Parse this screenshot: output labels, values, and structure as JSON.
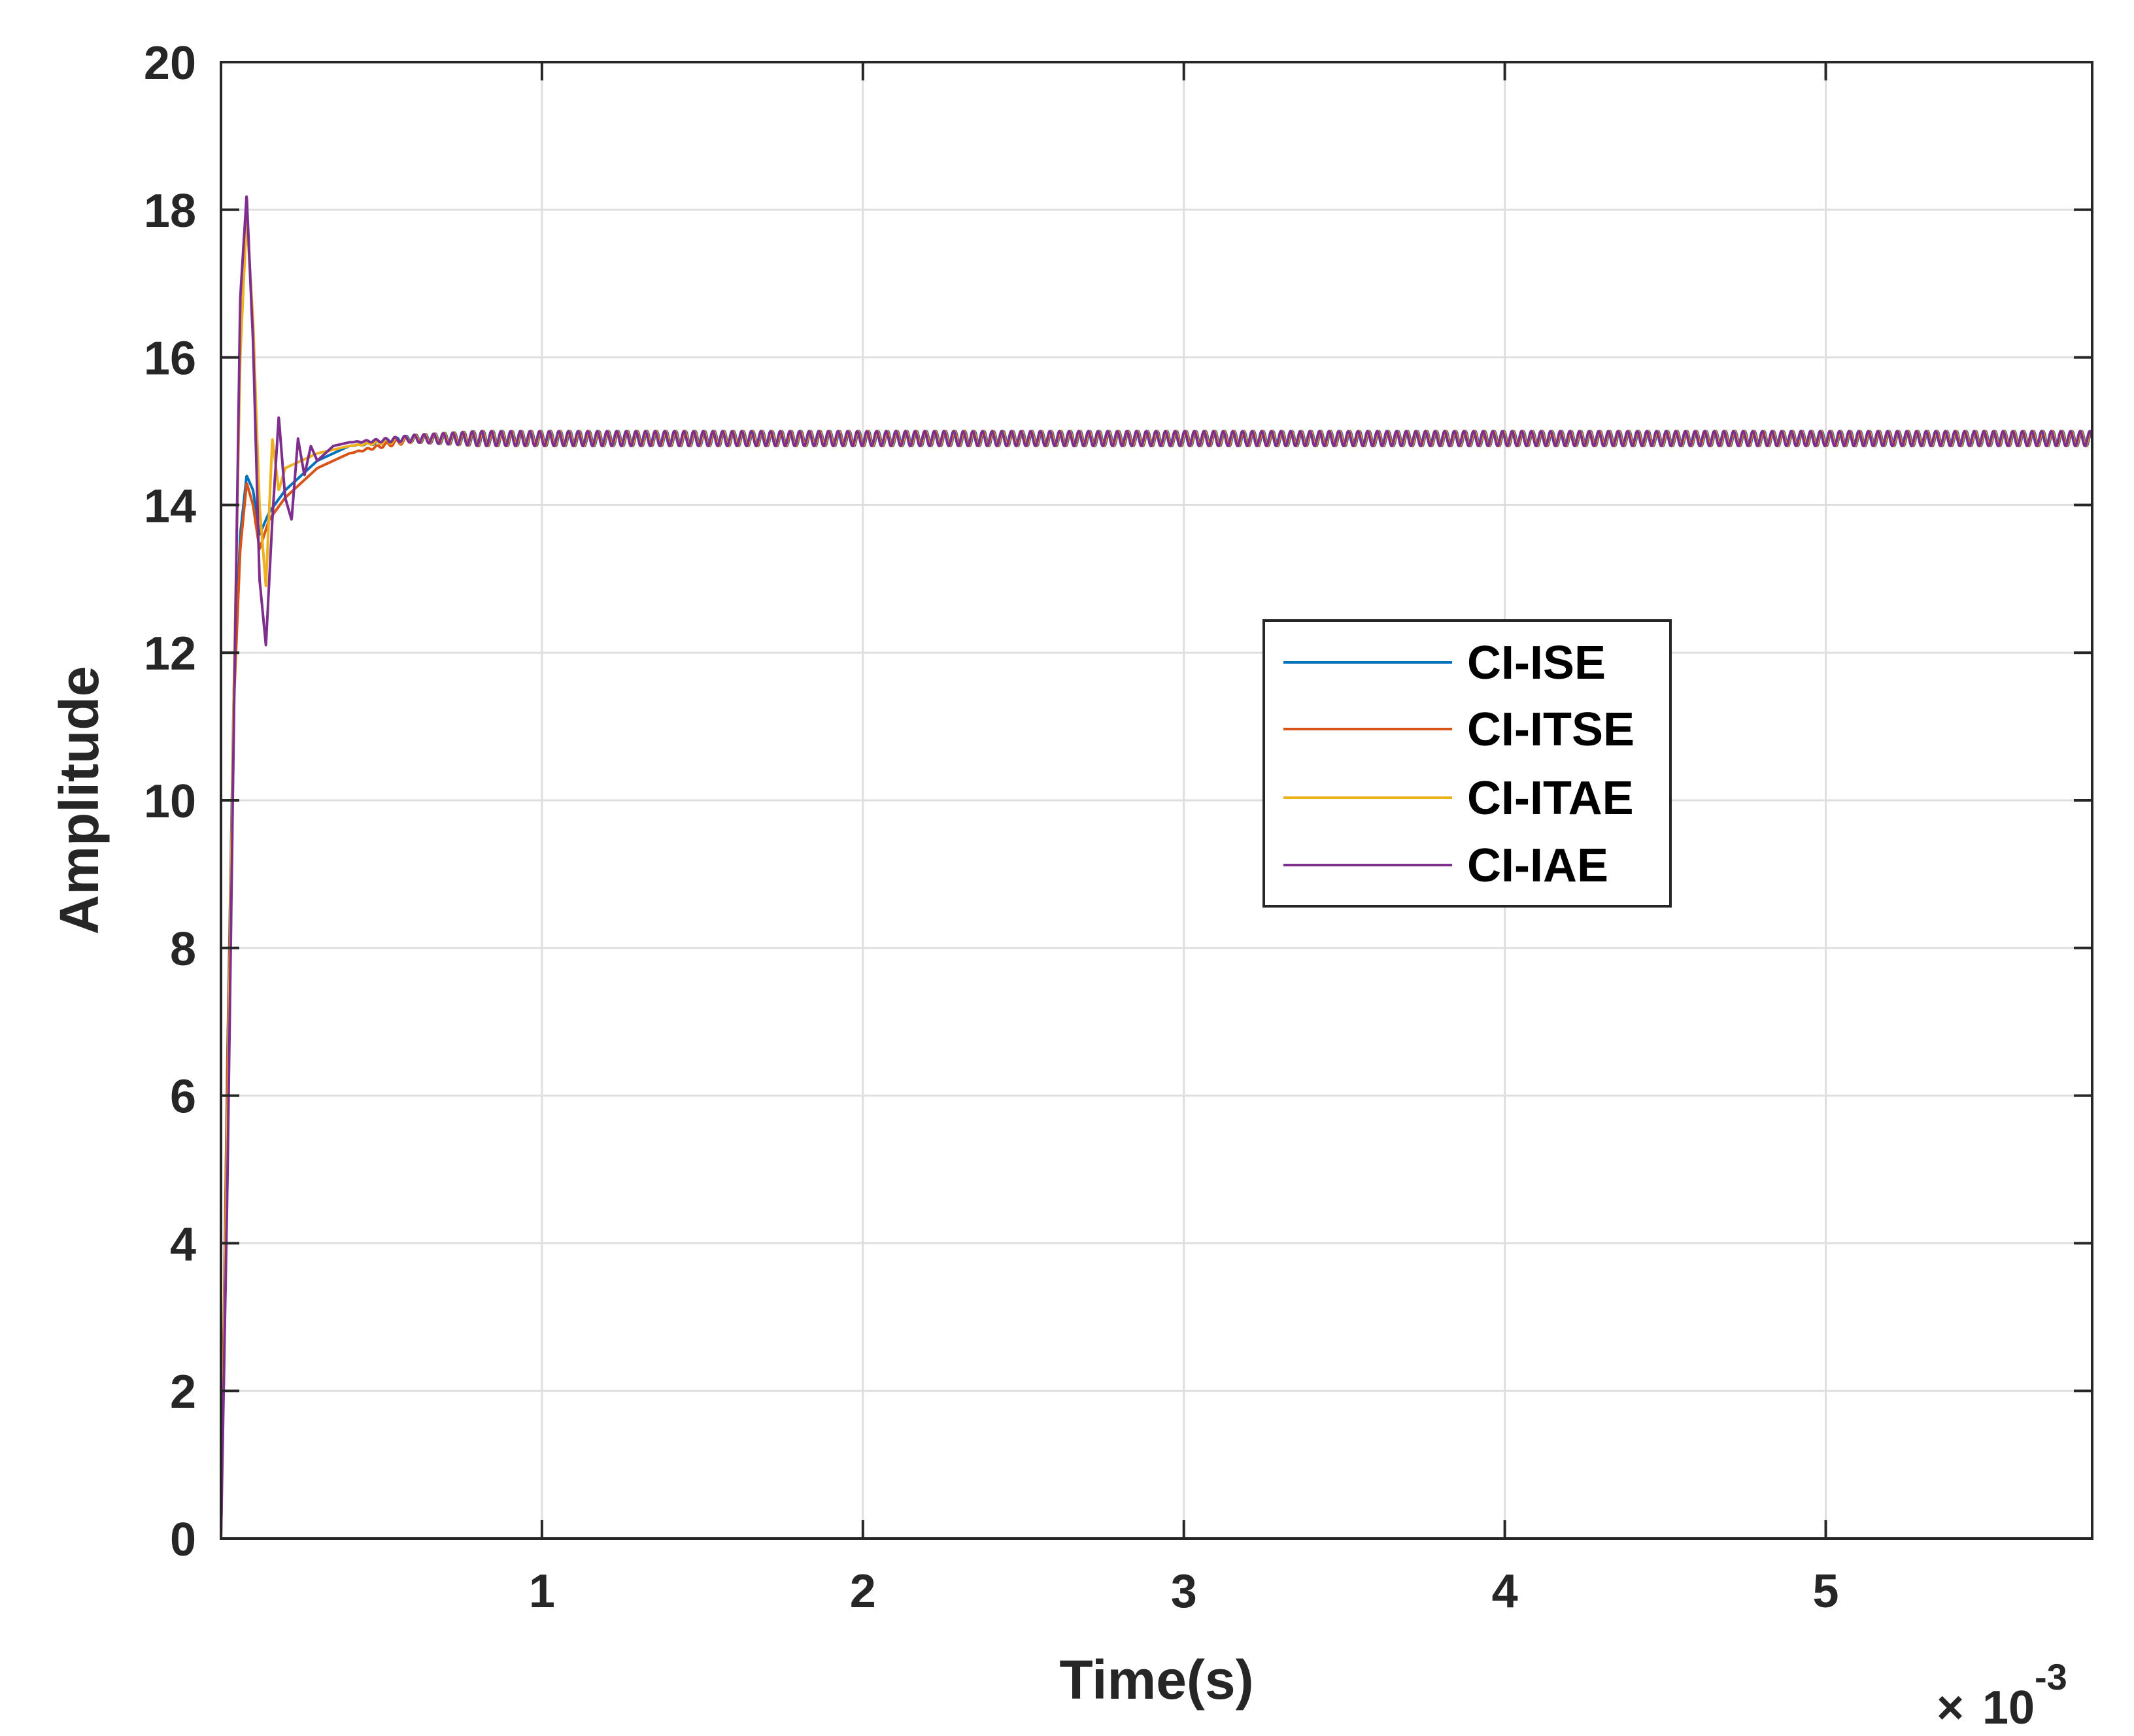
{
  "chart_data": {
    "type": "line",
    "xlabel": "Time(s)",
    "ylabel": "Amplitude",
    "x_exponent_label": {
      "times": "×",
      "base": "10",
      "power": "-3"
    },
    "xlim": [
      0,
      0.00583
    ],
    "ylim": [
      0,
      20
    ],
    "x_ticks": [
      0.001,
      0.002,
      0.003,
      0.004,
      0.005
    ],
    "x_tick_labels": [
      "1",
      "2",
      "3",
      "4",
      "5"
    ],
    "y_ticks": [
      0,
      2,
      4,
      6,
      8,
      10,
      12,
      14,
      16,
      18,
      20
    ],
    "y_tick_labels": [
      "0",
      "2",
      "4",
      "6",
      "8",
      "10",
      "12",
      "14",
      "16",
      "18",
      "20"
    ],
    "grid": true,
    "legend": {
      "position": "center-right",
      "entries": [
        "CI-ISE",
        "CI-ITSE",
        "CI-ITAE",
        "CI-IAE"
      ]
    },
    "ripple": {
      "start": 0.0008,
      "amplitude": 0.1,
      "period": 3e-05
    },
    "series": [
      {
        "name": "CI-ISE",
        "color": "#0072BD",
        "x": [
          0,
          2e-05,
          4e-05,
          6e-05,
          8e-05,
          0.0001,
          0.00012,
          0.00015,
          0.0002,
          0.0003,
          0.0004,
          0.0006,
          0.0008,
          0.00583
        ],
        "y": [
          0,
          6.5,
          11.5,
          13.6,
          14.4,
          14.2,
          13.6,
          13.9,
          14.2,
          14.6,
          14.8,
          14.9,
          14.9,
          14.9
        ]
      },
      {
        "name": "CI-ITSE",
        "color": "#D95319",
        "x": [
          0,
          2e-05,
          4e-05,
          6e-05,
          8e-05,
          0.0001,
          0.00012,
          0.00015,
          0.0002,
          0.0003,
          0.0004,
          0.0006,
          0.0008,
          0.00583
        ],
        "y": [
          0,
          6.3,
          11.3,
          13.4,
          14.3,
          14.0,
          13.4,
          13.8,
          14.1,
          14.5,
          14.7,
          14.9,
          14.9,
          14.9
        ]
      },
      {
        "name": "CI-ITAE",
        "color": "#EDB120",
        "x": [
          0,
          2e-05,
          4e-05,
          6e-05,
          8e-05,
          0.0001,
          0.00012,
          0.00014,
          0.00016,
          0.00018,
          0.0002,
          0.00025,
          0.0003,
          0.0004,
          0.0006,
          0.0008,
          0.00583
        ],
        "y": [
          0,
          5.5,
          11.5,
          16.0,
          17.9,
          16.5,
          14.0,
          12.9,
          14.9,
          14.2,
          14.5,
          14.6,
          14.7,
          14.8,
          14.9,
          14.9,
          14.9
        ]
      },
      {
        "name": "CI-IAE",
        "color": "#7E2F8E",
        "x": [
          0,
          2e-05,
          4e-05,
          6e-05,
          8e-05,
          0.0001,
          0.00012,
          0.00014,
          0.00016,
          0.00018,
          0.0002,
          0.00022,
          0.00024,
          0.00026,
          0.00028,
          0.0003,
          0.00035,
          0.0004,
          0.0006,
          0.0008,
          0.00583
        ],
        "y": [
          0,
          4.8,
          11.0,
          16.8,
          18.2,
          16.2,
          13.0,
          12.1,
          13.8,
          15.2,
          14.1,
          13.8,
          14.9,
          14.4,
          14.8,
          14.6,
          14.8,
          14.85,
          14.9,
          14.9,
          14.9
        ]
      }
    ]
  }
}
